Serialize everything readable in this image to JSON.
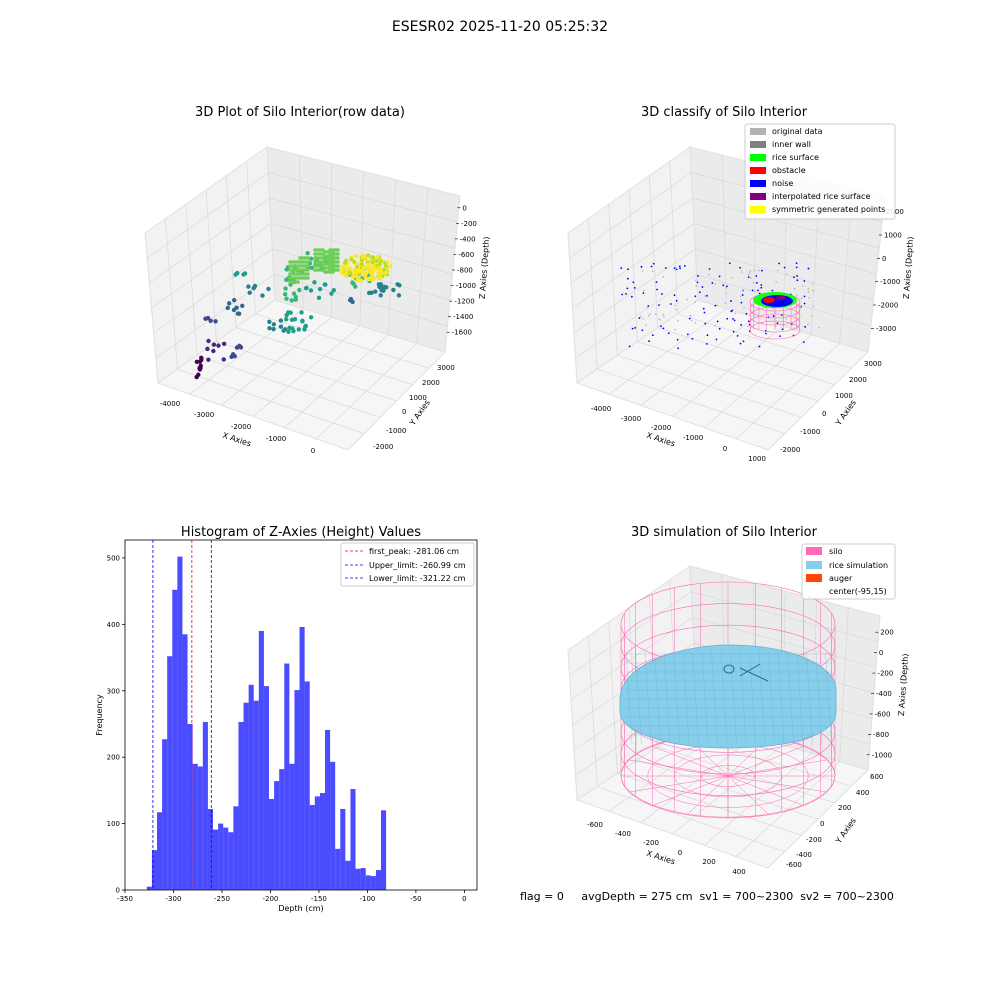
{
  "figure": {
    "suptitle": "ESESR02 2025-11-20 05:25:32",
    "footer": "flag = 0     avgDepth = 275 cm  sv1 = 700~2300  sv2 = 700~2300"
  },
  "panels": {
    "raw": {
      "title": "3D Plot of Silo Interior(row data)",
      "xlabel": "X Axies",
      "ylabel": "Y Axies",
      "zlabel": "Z Axies (Depth)",
      "xticks": [
        "-4000",
        "-3000",
        "-2000",
        "-1000",
        "0"
      ],
      "yticks": [
        "-2000",
        "-1000",
        "0",
        "1000",
        "2000",
        "3000"
      ],
      "zticks": [
        "0",
        "-200",
        "-400",
        "-600",
        "-800",
        "-1000",
        "-1200",
        "-1400",
        "-1600"
      ]
    },
    "classify": {
      "title": "3D classify of Silo Interior",
      "xlabel": "X Axies",
      "ylabel": "Y Axies",
      "zlabel": "Z Axies (Depth)",
      "xticks": [
        "-4000",
        "-3000",
        "-2000",
        "-1000",
        "0",
        "1000"
      ],
      "yticks": [
        "-2000",
        "-1000",
        "0",
        "1000",
        "2000",
        "3000"
      ],
      "zticks": [
        "2000",
        "1000",
        "0",
        "-1000",
        "-2000",
        "-3000"
      ],
      "legend": [
        {
          "label": "original data",
          "color": "#b3b3b3"
        },
        {
          "label": "inner wall",
          "color": "#808080"
        },
        {
          "label": "rice surface",
          "color": "#00ff00"
        },
        {
          "label": "obstacle",
          "color": "#ff0000"
        },
        {
          "label": "noise",
          "color": "#0000ff"
        },
        {
          "label": "interpolated rice surface",
          "color": "#800080"
        },
        {
          "label": "symmetric generated points",
          "color": "#ffff00"
        }
      ]
    },
    "simulation": {
      "title": "3D simulation of Silo Interior",
      "xlabel": "X Axies",
      "ylabel": "Y Axies",
      "zlabel": "Z Axies (Depth)",
      "xticks": [
        "-600",
        "-400",
        "-200",
        "0",
        "200",
        "400"
      ],
      "yticks": [
        "-600",
        "-400",
        "-200",
        "0",
        "200",
        "400",
        "600"
      ],
      "zticks": [
        "200",
        "0",
        "-200",
        "-400",
        "-600",
        "-800",
        "-1000"
      ],
      "legend": [
        {
          "label": "silo",
          "color": "#ff69b4"
        },
        {
          "label": "rice simulation",
          "color": "#87ceeb"
        },
        {
          "label": "auger",
          "color": "#ff4500"
        },
        {
          "label": "center(-95,15)",
          "color": ""
        }
      ]
    }
  },
  "chart_data": {
    "type": "bar",
    "title": "Histogram of Z-Axies (Height) Values",
    "xlabel": "Depth (cm)",
    "ylabel": "Frequency",
    "xlim": [
      -350,
      13
    ],
    "ylim": [
      0,
      527
    ],
    "xticks": [
      -350,
      -300,
      -250,
      -200,
      -150,
      -100,
      -50,
      0
    ],
    "yticks": [
      0,
      100,
      200,
      300,
      400,
      500
    ],
    "bar_color": "#0000ff",
    "bins_start": -327.5,
    "bin_width": 5.25,
    "values": [
      5,
      60,
      117,
      227,
      352,
      452,
      502,
      385,
      250,
      190,
      186,
      253,
      122,
      91,
      100,
      94,
      87,
      126,
      253,
      282,
      309,
      285,
      390,
      307,
      137,
      164,
      182,
      341,
      190,
      301,
      396,
      314,
      128,
      141,
      146,
      241,
      193,
      62,
      122,
      44,
      152,
      32,
      33,
      22,
      21,
      30,
      120
    ],
    "vlines": [
      {
        "x": -281.06,
        "label": "first_peak: -281.06 cm",
        "color": "#ff0000"
      },
      {
        "x": -260.99,
        "label": "Upper_limit: -260.99 cm",
        "color": "#0000ff"
      },
      {
        "x": -321.22,
        "label": "Lower_limit: -321.22 cm",
        "color": "#0000ff"
      }
    ]
  }
}
